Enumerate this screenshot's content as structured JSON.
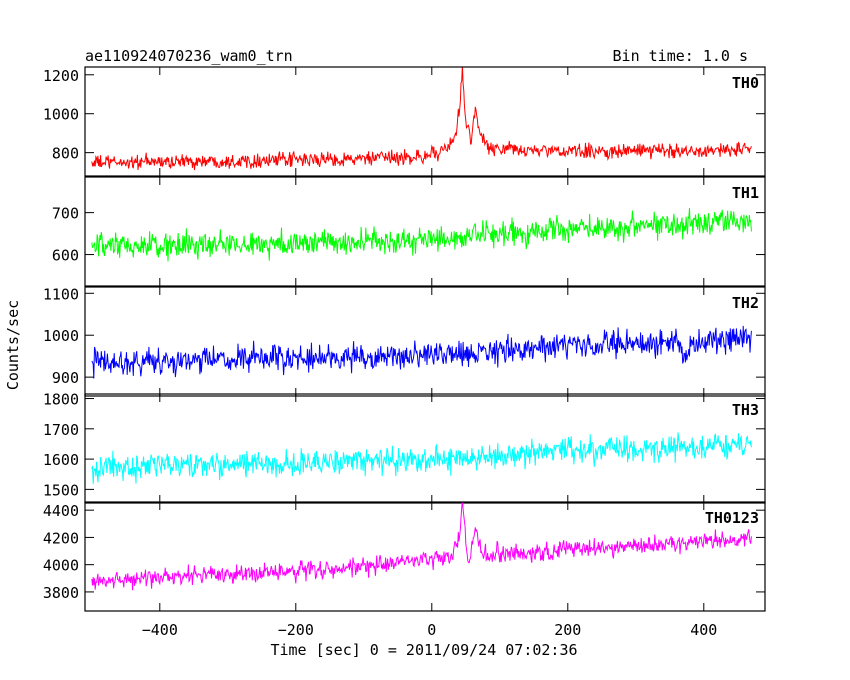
{
  "header": {
    "title": "ae110924070236_wam0_trn",
    "bin_time": "Bin time: 1.0 s"
  },
  "chart_data": {
    "type": "line",
    "ylabel": "Counts/sec",
    "xlabel": "Time [sec] 0 = 2011/09/24 07:02:36",
    "xlim": [
      -510,
      490
    ],
    "x_range": [
      -500,
      470
    ],
    "xticks": [
      -400,
      -200,
      0,
      200,
      400
    ],
    "grid": false,
    "panels": [
      {
        "name": "TH0",
        "color": "#ff0000",
        "ylim": [
          680,
          1240
        ],
        "yticks": [
          800,
          1000,
          1200
        ],
        "trend": [
          [
            -500,
            748
          ],
          [
            -100,
            768
          ],
          [
            -5,
            780
          ],
          [
            0,
            820
          ],
          [
            5,
            790
          ],
          [
            20,
            805
          ],
          [
            35,
            880
          ],
          [
            42,
            1080
          ],
          [
            45,
            1240
          ],
          [
            50,
            950
          ],
          [
            58,
            870
          ],
          [
            64,
            1020
          ],
          [
            70,
            900
          ],
          [
            85,
            820
          ],
          [
            200,
            805
          ],
          [
            470,
            815
          ]
        ],
        "noise": 32
      },
      {
        "name": "TH1",
        "color": "#00ff00",
        "ylim": [
          525,
          785
        ],
        "yticks": [
          600,
          700
        ],
        "trend": [
          [
            -500,
            617
          ],
          [
            0,
            634
          ],
          [
            200,
            662
          ],
          [
            470,
            683
          ]
        ],
        "noise": 27
      },
      {
        "name": "TH2",
        "color": "#0000ff",
        "ylim": [
          855,
          1115
        ],
        "yticks": [
          900,
          1000,
          1100
        ],
        "trend": [
          [
            -500,
            935
          ],
          [
            0,
            950
          ],
          [
            200,
            975
          ],
          [
            360,
            985
          ],
          [
            370,
            945
          ],
          [
            385,
            980
          ],
          [
            470,
            990
          ]
        ],
        "noise": 27
      },
      {
        "name": "TH3",
        "color": "#00ffff",
        "ylim": [
          1455,
          1815
        ],
        "yticks": [
          1500,
          1600,
          1700,
          1800
        ],
        "trend": [
          [
            -500,
            1570
          ],
          [
            0,
            1598
          ],
          [
            200,
            1625
          ],
          [
            470,
            1650
          ]
        ],
        "noise": 37
      },
      {
        "name": "TH0123",
        "color": "#ff00ff",
        "ylim": [
          3660,
          4460
        ],
        "yticks": [
          3800,
          4000,
          4200,
          4400
        ],
        "trend": [
          [
            -500,
            3880
          ],
          [
            -100,
            3980
          ],
          [
            -5,
            4040
          ],
          [
            30,
            4060
          ],
          [
            40,
            4200
          ],
          [
            45,
            4460
          ],
          [
            50,
            4150
          ],
          [
            55,
            4020
          ],
          [
            65,
            4260
          ],
          [
            75,
            4070
          ],
          [
            100,
            4080
          ],
          [
            200,
            4110
          ],
          [
            470,
            4190
          ]
        ],
        "noise": 60
      }
    ]
  }
}
